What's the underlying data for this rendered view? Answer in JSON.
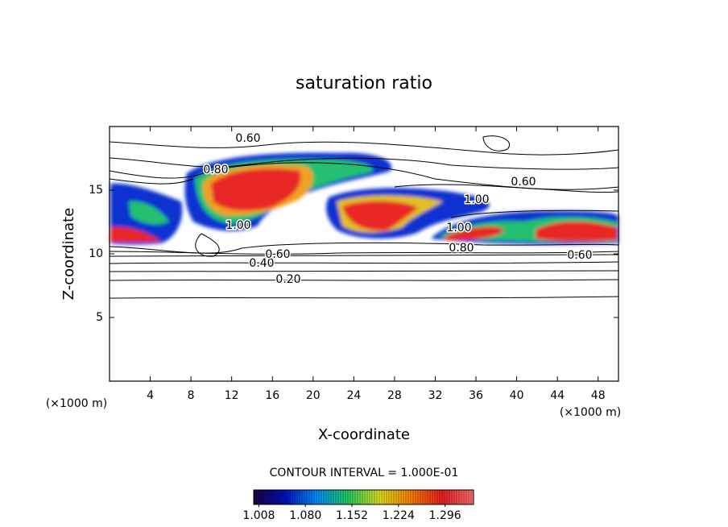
{
  "chart_data": {
    "type": "contour",
    "title": "saturation ratio",
    "x_label": "X-coordinate",
    "y_label": "Z-coordinate",
    "x_unit": "(×1000 m)",
    "y_unit": "(×1000 m)",
    "xlim": [
      0,
      50
    ],
    "xticks": [
      4,
      8,
      12,
      16,
      20,
      24,
      28,
      32,
      36,
      40,
      44,
      48
    ],
    "ylim": [
      0,
      20
    ],
    "yticks": [
      5,
      10,
      15
    ],
    "contour_labels": [
      "0.60",
      "0.80",
      "0.60",
      "1.00",
      "1.00",
      "1.00",
      "0.80",
      "0.60",
      "0.40",
      "0.60",
      "0.20"
    ],
    "contour_interval_label": "CONTOUR INTERVAL = 1.000E-01",
    "colorbar": {
      "lim": [
        1.0,
        1.34
      ],
      "ticks": [
        1.008,
        {
          "value": 1.08,
          "label": "1.080"
        },
        1.152,
        1.224,
        1.296
      ],
      "colors": [
        "#1a0040",
        "#0010c0",
        "#0090ff",
        "#20d060",
        "#e0e020",
        "#ff8000",
        "#e82020",
        "#ff7070"
      ]
    }
  }
}
